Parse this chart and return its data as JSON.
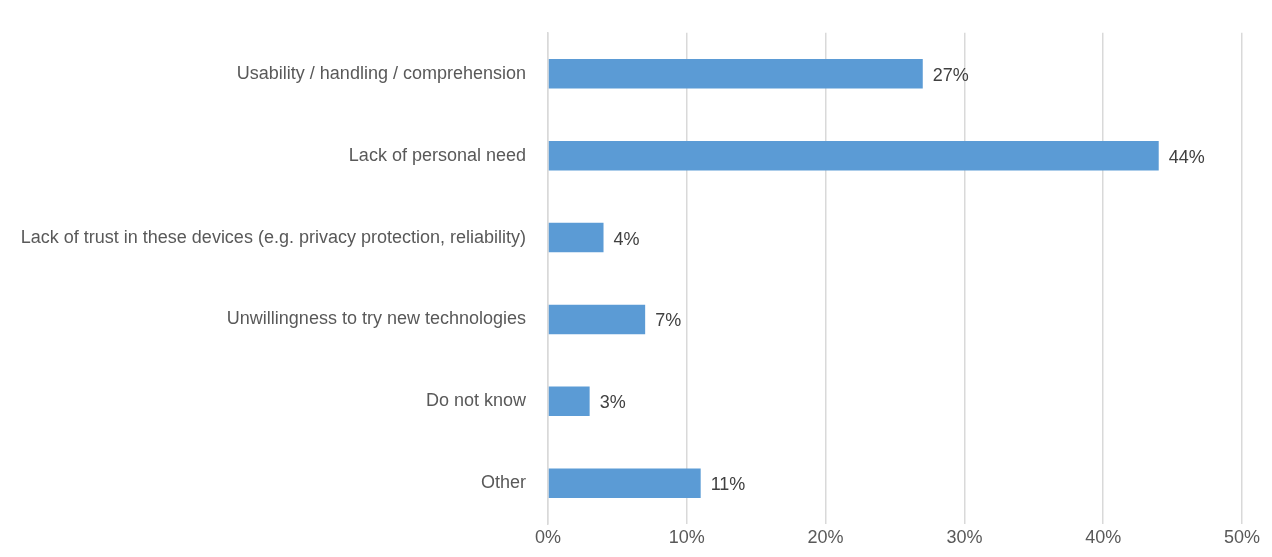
{
  "chart_data": {
    "type": "bar",
    "orientation": "horizontal",
    "categories": [
      "Usability / handling / comprehension",
      "Lack of personal need",
      "Lack of trust in these devices (e.g. privacy protection, reliability)",
      "Unwillingness to try new technologies",
      "Do not know",
      "Other"
    ],
    "values": [
      27,
      44,
      4,
      7,
      3,
      11
    ],
    "value_labels": [
      "27%",
      "44%",
      "4%",
      "7%",
      "3%",
      "11%"
    ],
    "color": "#5b9bd5",
    "xlim": [
      0,
      50
    ],
    "xticks": [
      {
        "value": 0,
        "label": "0%"
      },
      {
        "value": 10,
        "label": "10%"
      },
      {
        "value": 20,
        "label": "20%"
      },
      {
        "value": 30,
        "label": "30%"
      },
      {
        "value": 40,
        "label": "40%"
      },
      {
        "value": 50,
        "label": "50%"
      }
    ],
    "grid": "x",
    "legend": false
  }
}
